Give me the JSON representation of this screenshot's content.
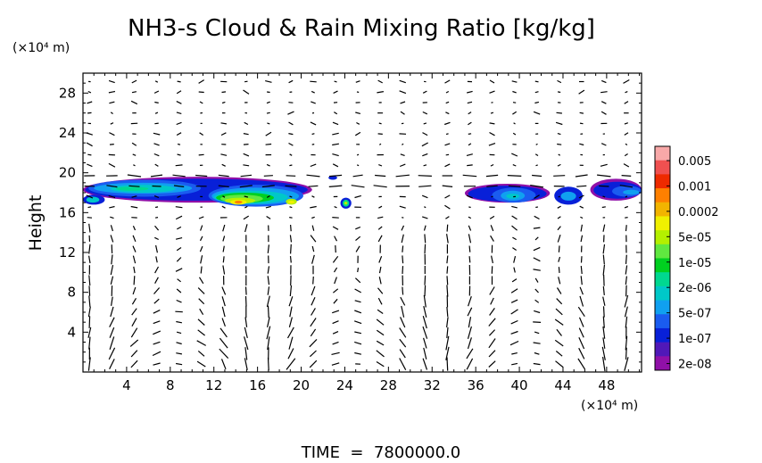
{
  "chart_data": {
    "type": "heatmap",
    "title": "NH3-s Cloud & Rain Mixing Ratio [kg/kg]",
    "ylabel": "Height",
    "y_unit": "(×10⁴ m)",
    "x_unit": "(×10⁴ m)",
    "footer": "TIME  =  7800000.0",
    "xlim": [
      0,
      51.2
    ],
    "ylim": [
      0,
      30
    ],
    "xticks": [
      "4",
      "8",
      "12",
      "16",
      "20",
      "24",
      "28",
      "32",
      "36",
      "40",
      "44",
      "48"
    ],
    "yticks": [
      "4",
      "8",
      "12",
      "16",
      "20",
      "24",
      "28"
    ],
    "colorbar": {
      "labels": [
        "0.005",
        "0.001",
        "0.0002",
        "5e-05",
        "1e-05",
        "2e-06",
        "5e-07",
        "1e-07",
        "2e-08"
      ],
      "colors": [
        "#f8a8a8",
        "#f05050",
        "#ee2a00",
        "#ff8000",
        "#f2b400",
        "#f0f000",
        "#b4f000",
        "#60e840",
        "#00d020",
        "#00d890",
        "#00c8c8",
        "#10a0f0",
        "#1a5cf0",
        "#0820d8",
        "#5018b8",
        "#9010a8"
      ]
    },
    "cloud_regions": [
      {
        "x_range": [
          0,
          21
        ],
        "y_range": [
          16.5,
          19.5
        ],
        "max_level": "0.0002"
      },
      {
        "x_range": [
          23.8,
          24.6
        ],
        "y_range": [
          16.5,
          17.5
        ],
        "max_level": "1e-05"
      },
      {
        "x_range": [
          35,
          44
        ],
        "y_range": [
          16.7,
          19
        ],
        "max_level": "2e-06"
      },
      {
        "x_range": [
          44,
          51.2
        ],
        "y_range": [
          17,
          19.5
        ],
        "max_level": "5e-07"
      }
    ],
    "wind_vectors": "drawn"
  }
}
